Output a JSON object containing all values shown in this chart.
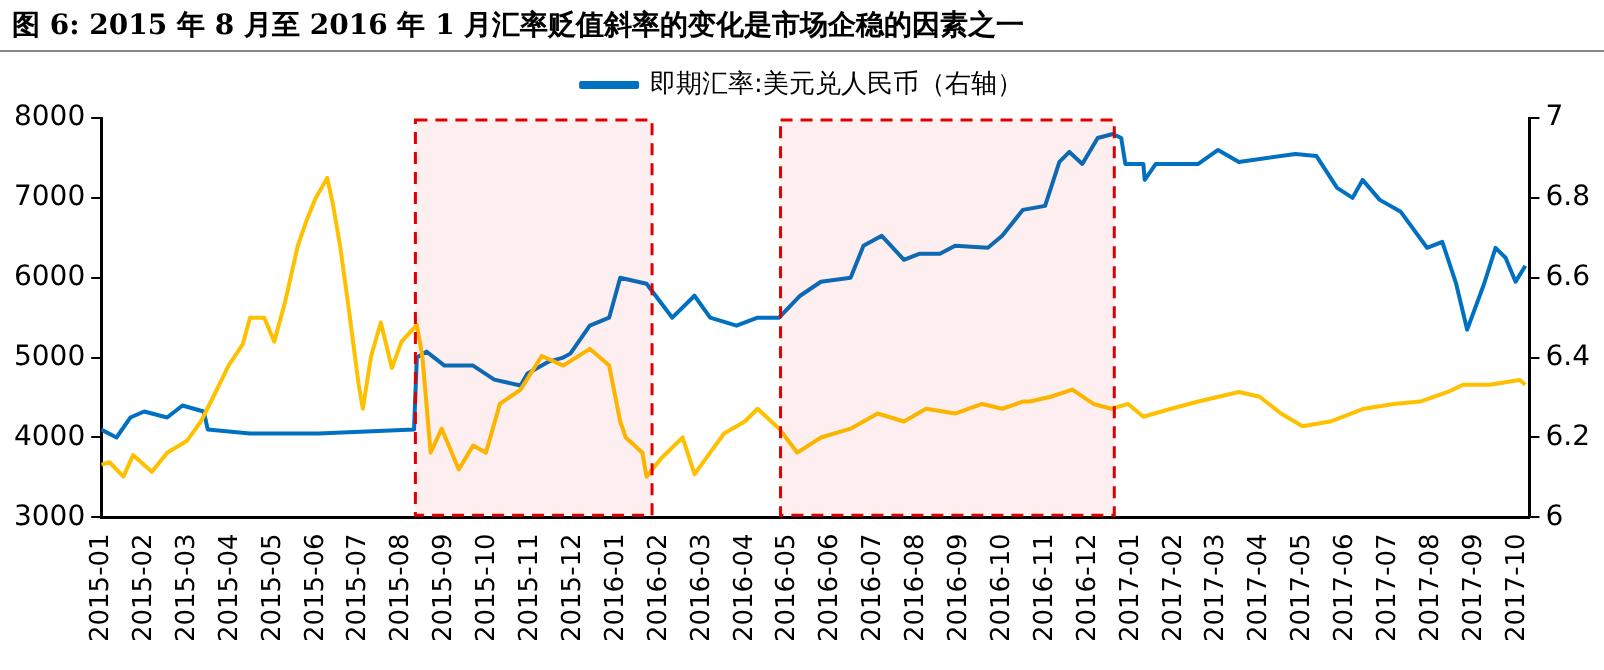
{
  "chart_data": {
    "type": "line",
    "title": "图 6: 2015 年 8 月至 2016 年 1 月汇率贬值斜率的变化是市场企稳的因素之一",
    "xlim": [
      "2015-01-01",
      "2017-10-10"
    ],
    "xticks": [
      "2015-01",
      "2015-02",
      "2015-03",
      "2015-04",
      "2015-05",
      "2015-06",
      "2015-07",
      "2015-08",
      "2015-09",
      "2015-10",
      "2015-11",
      "2015-12",
      "2016-01",
      "2016-02",
      "2016-03",
      "2016-04",
      "2016-05",
      "2016-06",
      "2016-07",
      "2016-08",
      "2016-09",
      "2016-10",
      "2016-11",
      "2016-12",
      "2017-01",
      "2017-02",
      "2017-03",
      "2017-04",
      "2017-05",
      "2017-06",
      "2017-07",
      "2017-08",
      "2017-09",
      "2017-10"
    ],
    "ylim": [
      3000,
      8000
    ],
    "yticks": [
      3000,
      4000,
      5000,
      6000,
      7000,
      8000
    ],
    "y2lim": [
      6,
      7
    ],
    "y2ticks": [
      6,
      6.2,
      6.4,
      6.6,
      6.8,
      7
    ],
    "grid": false,
    "legend": "top",
    "marker": "none",
    "line_style": "solid",
    "series": [
      {
        "color": "#ffc000",
        "x": [
          "2015-01-01",
          "2015-01-07",
          "2015-01-17",
          "2015-01-24",
          "2015-02-06",
          "2015-02-16",
          "2015-03-01",
          "2015-03-11",
          "2015-03-20",
          "2015-03-31",
          "2015-04-10",
          "2015-04-15",
          "2015-04-25",
          "2015-05-02",
          "2015-05-10",
          "2015-05-19",
          "2015-05-25",
          "2015-06-01",
          "2015-06-09",
          "2015-06-13",
          "2015-06-18",
          "2015-06-24",
          "2015-07-01",
          "2015-07-04",
          "2015-07-10",
          "2015-07-17",
          "2015-07-25",
          "2015-08-01",
          "2015-08-12",
          "2015-08-16",
          "2015-08-22",
          "2015-08-30",
          "2015-09-11",
          "2015-09-21",
          "2015-09-30",
          "2015-10-10",
          "2015-10-25",
          "2015-11-09",
          "2015-11-24",
          "2015-12-13",
          "2015-12-27",
          "2016-01-04",
          "2016-01-08",
          "2016-01-20",
          "2016-01-23",
          "2016-02-03",
          "2016-02-17",
          "2016-02-25",
          "2016-03-07",
          "2016-03-17",
          "2016-04-01",
          "2016-04-10",
          "2016-04-25",
          "2016-05-08",
          "2016-05-25",
          "2016-06-15",
          "2016-07-04",
          "2016-07-23",
          "2016-08-08",
          "2016-08-29",
          "2016-09-17",
          "2016-10-01",
          "2016-10-16",
          "2016-10-21",
          "2016-11-05",
          "2016-11-20",
          "2016-12-05",
          "2016-12-18",
          "2016-12-30",
          "2017-01-10",
          "2017-01-30",
          "2017-02-17",
          "2017-03-17",
          "2017-04-01",
          "2017-04-16",
          "2017-05-01",
          "2017-05-21",
          "2017-06-14",
          "2017-07-05",
          "2017-07-24",
          "2017-08-13",
          "2017-08-24",
          "2017-09-12",
          "2017-10-03",
          "2017-10-07"
        ],
        "values": [
          3660,
          3690,
          3510,
          3780,
          3570,
          3810,
          3960,
          4200,
          4510,
          4900,
          5170,
          5500,
          5500,
          5200,
          5710,
          6400,
          6700,
          7000,
          7250,
          6920,
          6400,
          5620,
          4660,
          4360,
          5020,
          5440,
          4870,
          5200,
          5410,
          5020,
          3810,
          4110,
          3600,
          3900,
          3810,
          4420,
          4600,
          5020,
          4900,
          5110,
          4900,
          4200,
          4000,
          3810,
          3510,
          3750,
          4000,
          3540,
          3810,
          4050,
          4200,
          4360,
          4110,
          3810,
          4000,
          4110,
          4300,
          4200,
          4360,
          4300,
          4420,
          4360,
          4450,
          4450,
          4510,
          4600,
          4420,
          4360,
          4420,
          4260,
          4360,
          4450,
          4570,
          4510,
          4300,
          4140,
          4200,
          4360,
          4420,
          4450,
          4570,
          4660,
          4660,
          4720,
          4660
        ]
      },
      {
        "name": "即期汇率:美元兑人民币（右轴）",
        "color": "#0070c0",
        "axis": "y2",
        "x": [
          "2015-01-01",
          "2015-01-12",
          "2015-01-22",
          "2015-02-01",
          "2015-02-16",
          "2015-02-26",
          "2015-03-13",
          "2015-03-16",
          "2015-04-15",
          "2015-06-03",
          "2015-08-10",
          "2015-08-12",
          "2015-08-19",
          "2015-09-01",
          "2015-09-21",
          "2015-10-06",
          "2015-10-25",
          "2015-10-30",
          "2015-11-14",
          "2015-11-24",
          "2015-11-29",
          "2015-12-13",
          "2015-12-27",
          "2016-01-04",
          "2016-01-23",
          "2016-02-10",
          "2016-02-25",
          "2016-03-07",
          "2016-03-26",
          "2016-04-10",
          "2016-04-25",
          "2016-05-10",
          "2016-05-25",
          "2016-06-15",
          "2016-06-24",
          "2016-07-07",
          "2016-07-23",
          "2016-08-03",
          "2016-08-18",
          "2016-08-29",
          "2016-09-21",
          "2016-10-01",
          "2016-10-16",
          "2016-11-01",
          "2016-11-11",
          "2016-11-18",
          "2016-11-27",
          "2016-12-08",
          "2016-12-19",
          "2016-12-25",
          "2016-12-28",
          "2017-01-10",
          "2017-01-11",
          "2017-01-19",
          "2017-02-17",
          "2017-03-02",
          "2017-03-17",
          "2017-04-26",
          "2017-05-11",
          "2017-05-26",
          "2017-06-06",
          "2017-06-13",
          "2017-06-25",
          "2017-07-10",
          "2017-07-29",
          "2017-08-09",
          "2017-08-19",
          "2017-08-27",
          "2017-09-08",
          "2017-09-16",
          "2017-09-23",
          "2017-09-30",
          "2017-10-07"
        ],
        "values": [
          6.22,
          6.2,
          6.25,
          6.265,
          6.25,
          6.28,
          6.265,
          6.22,
          6.21,
          6.21,
          6.22,
          6.4,
          6.415,
          6.38,
          6.38,
          6.345,
          6.33,
          6.36,
          6.39,
          6.4,
          6.41,
          6.48,
          6.5,
          6.6,
          6.585,
          6.5,
          6.555,
          6.5,
          6.48,
          6.5,
          6.5,
          6.555,
          6.59,
          6.6,
          6.68,
          6.705,
          6.645,
          6.66,
          6.66,
          6.68,
          6.675,
          6.705,
          6.77,
          6.78,
          6.89,
          6.915,
          6.885,
          6.95,
          6.96,
          6.95,
          6.885,
          6.885,
          6.845,
          6.885,
          6.885,
          6.92,
          6.89,
          6.91,
          6.905,
          6.825,
          6.8,
          6.845,
          6.795,
          6.765,
          6.675,
          6.69,
          6.585,
          6.47,
          6.585,
          6.675,
          6.65,
          6.59,
          6.63
        ]
      }
    ],
    "bands": [
      {
        "axis": "x",
        "from": "2015-08-11",
        "to": "2016-01-27",
        "color": "#e00000"
      },
      {
        "axis": "x",
        "from": "2016-04-26",
        "to": "2016-12-20",
        "color": "#e00000"
      }
    ]
  }
}
